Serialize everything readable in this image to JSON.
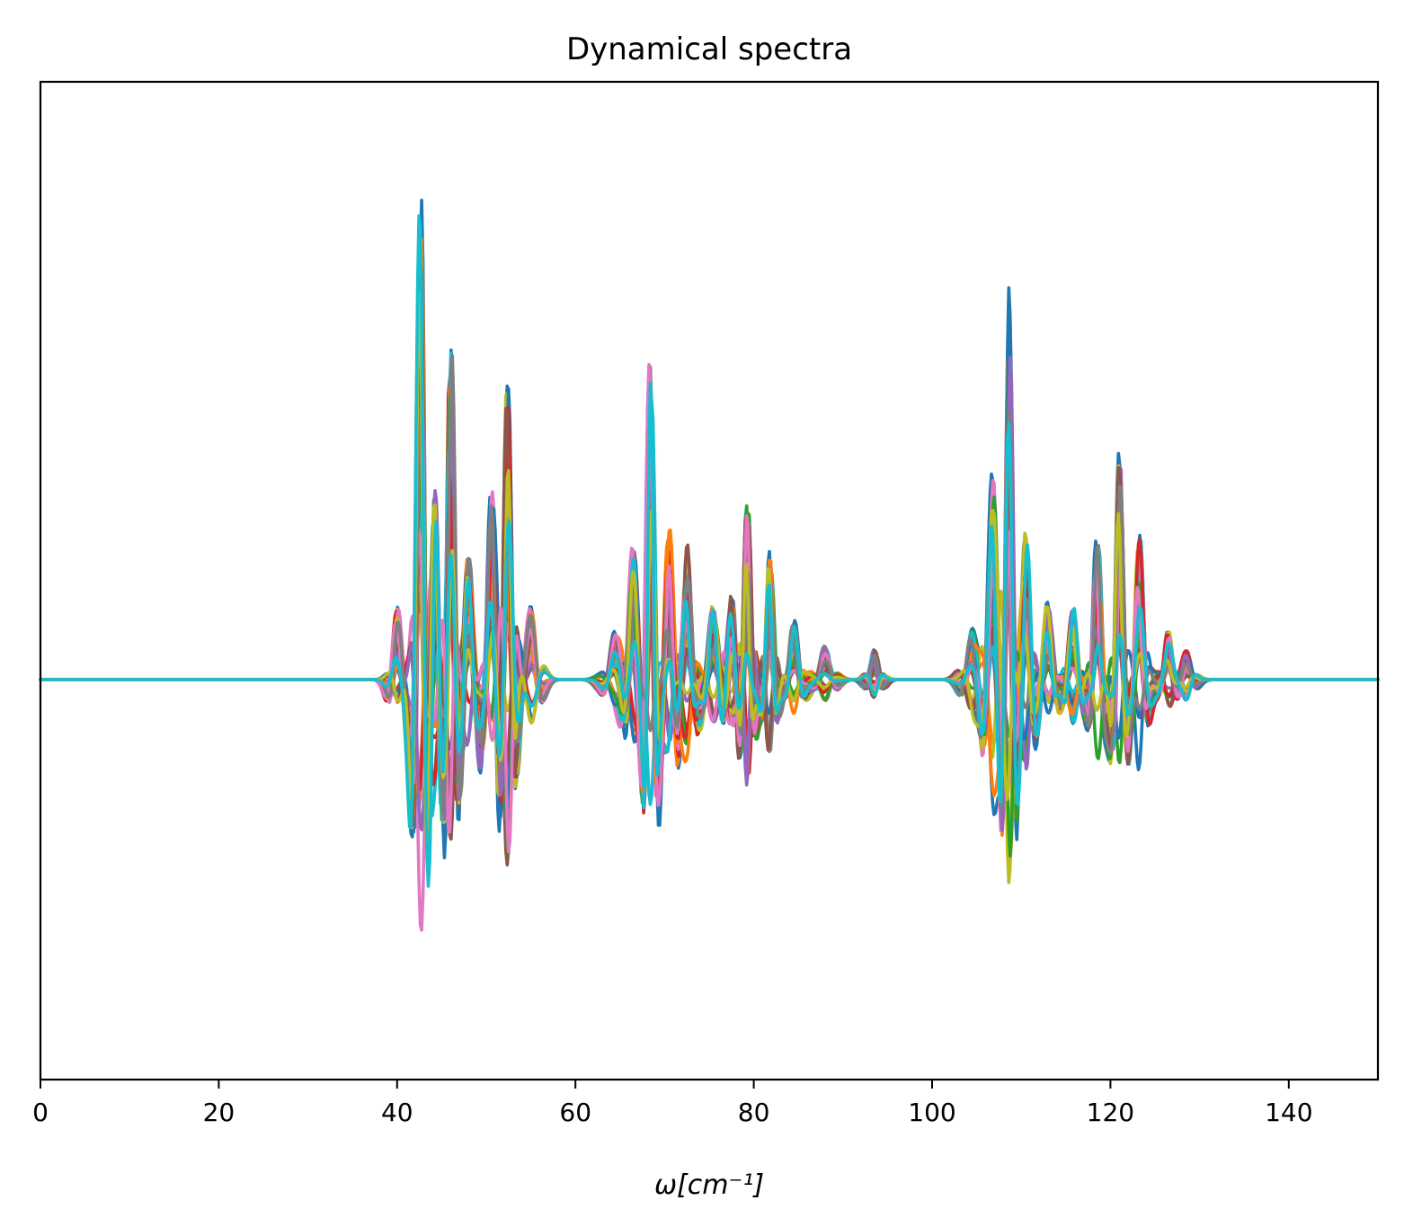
{
  "chart_data": {
    "type": "line",
    "title": "Dynamical spectra",
    "xlabel": "ω[cm⁻¹]",
    "ylabel": "",
    "xlim": [
      0,
      150
    ],
    "ylim": [
      -1.0,
      1.0
    ],
    "y_ticks_shown": false,
    "grid": false,
    "legend": "none",
    "x_ticks": [
      0,
      20,
      40,
      60,
      80,
      100,
      120,
      140
    ],
    "x_tick_labels": [
      "0",
      "20",
      "40",
      "60",
      "80",
      "100",
      "120",
      "140"
    ],
    "palette": [
      "#1f77b4",
      "#ff7f0e",
      "#2ca02c",
      "#d62728",
      "#9467bd",
      "#8c564b",
      "#e377c2",
      "#7f7f7f",
      "#bcbd22",
      "#17becf"
    ],
    "series_count": 40,
    "peaks": [
      {
        "x": 42.6,
        "pos_max": 1.1,
        "neg_min": -0.45
      },
      {
        "x": 46.0,
        "pos_max": 0.8,
        "neg_min": -0.56
      },
      {
        "x": 52.4,
        "pos_max": 0.65,
        "neg_min": -0.54
      },
      {
        "x": 68.4,
        "pos_max": 0.65,
        "neg_min": -0.7
      },
      {
        "x": 79.3,
        "pos_max": 0.38,
        "neg_min": -0.32
      },
      {
        "x": 108.6,
        "pos_max": 0.78,
        "neg_min": -0.65
      },
      {
        "x": 121.0,
        "pos_max": 0.47,
        "neg_min": -0.33
      }
    ]
  }
}
